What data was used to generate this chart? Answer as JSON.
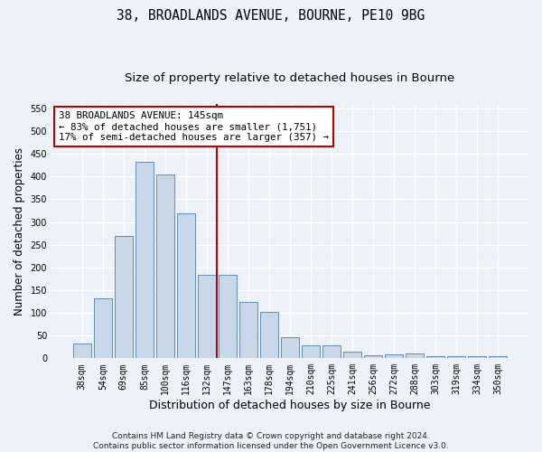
{
  "title_line1": "38, BROADLANDS AVENUE, BOURNE, PE10 9BG",
  "title_line2": "Size of property relative to detached houses in Bourne",
  "xlabel": "Distribution of detached houses by size in Bourne",
  "ylabel": "Number of detached properties",
  "categories": [
    "38sqm",
    "54sqm",
    "69sqm",
    "85sqm",
    "100sqm",
    "116sqm",
    "132sqm",
    "147sqm",
    "163sqm",
    "178sqm",
    "194sqm",
    "210sqm",
    "225sqm",
    "241sqm",
    "256sqm",
    "272sqm",
    "288sqm",
    "303sqm",
    "319sqm",
    "334sqm",
    "350sqm"
  ],
  "values": [
    32,
    132,
    270,
    432,
    405,
    320,
    183,
    183,
    125,
    103,
    46,
    28,
    28,
    15,
    7,
    9,
    10,
    4,
    5,
    5,
    5
  ],
  "bar_color": "#c8d8e8",
  "bar_edge_color": "#4d7eb0",
  "vline_color": "#c00000",
  "vline_x": 6.5,
  "annotation_line1": "38 BROADLANDS AVENUE: 145sqm",
  "annotation_line2": "← 83% of detached houses are smaller (1,751)",
  "annotation_line3": "17% of semi-detached houses are larger (357) →",
  "annotation_box_color": "#ffffff",
  "annotation_box_edge_color": "#c00000",
  "ylim": [
    0,
    560
  ],
  "yticks": [
    0,
    50,
    100,
    150,
    200,
    250,
    300,
    350,
    400,
    450,
    500,
    550
  ],
  "footer_line1": "Contains HM Land Registry data © Crown copyright and database right 2024.",
  "footer_line2": "Contains public sector information licensed under the Open Government Licence v3.0.",
  "bg_color": "#edf2f9",
  "grid_color": "#ffffff",
  "title_fontsize": 10.5,
  "subtitle_fontsize": 9.5,
  "tick_fontsize": 7,
  "ylabel_fontsize": 8.5,
  "xlabel_fontsize": 9,
  "annotation_fontsize": 7.8,
  "footer_fontsize": 6.5
}
